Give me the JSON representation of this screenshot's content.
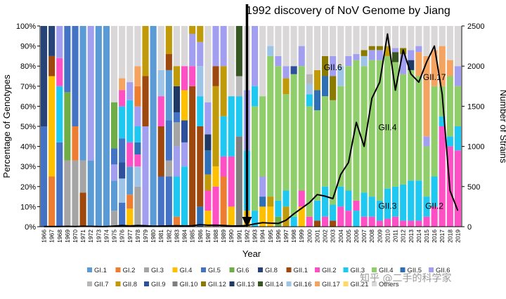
{
  "chart_data": {
    "type": "bar",
    "stacked": true,
    "title": "1992 discovery of NoV Genome by Jiang",
    "xlabel": "Year",
    "ylabel": "Percentage of Genotypes",
    "y2label": "Number of Strains",
    "ylim": [
      0,
      100
    ],
    "y2lim": [
      0,
      2500
    ],
    "yticks": [
      "0%",
      "10%",
      "20%",
      "30%",
      "40%",
      "50%",
      "60%",
      "70%",
      "80%",
      "90%",
      "100%"
    ],
    "y2ticks": [
      "0",
      "500",
      "1000",
      "1500",
      "2000",
      "2500"
    ],
    "categories": [
      "1966",
      "1967",
      "1968",
      "1969",
      "1970",
      "1971",
      "1972",
      "1973",
      "1974",
      "1975",
      "1976",
      "1977",
      "1978",
      "1979",
      "1980",
      "1981",
      "1982",
      "1983",
      "1984",
      "1985",
      "1986",
      "1987",
      "1988",
      "1989",
      "1990",
      "1991",
      "1992",
      "1993",
      "1994",
      "1995",
      "1996",
      "1997",
      "1998",
      "1999",
      "2000",
      "2001",
      "2002",
      "2003",
      "2004",
      "2005",
      "2006",
      "2007",
      "2008",
      "2009",
      "2010",
      "2011",
      "2012",
      "2013",
      "2014",
      "2015",
      "2016",
      "2017",
      "2018",
      "2019"
    ],
    "genotypes": [
      {
        "name": "GI.1",
        "color": "#5b9bd5"
      },
      {
        "name": "GI.2",
        "color": "#ed7d31"
      },
      {
        "name": "GI.3",
        "color": "#a5a5a5"
      },
      {
        "name": "GI.4",
        "color": "#ffc000"
      },
      {
        "name": "GI.5",
        "color": "#4472c4"
      },
      {
        "name": "GI.6",
        "color": "#70ad47"
      },
      {
        "name": "GI.8",
        "color": "#264478"
      },
      {
        "name": "GII.1",
        "color": "#9e480e"
      },
      {
        "name": "GII.2",
        "color": "#ff4fc4"
      },
      {
        "name": "GII.3",
        "color": "#1ec8f0"
      },
      {
        "name": "GII.4",
        "color": "#8fce6a"
      },
      {
        "name": "GII.5",
        "color": "#2f6fb5"
      },
      {
        "name": "GII.6",
        "color": "#a39ff0"
      },
      {
        "name": "GII.7",
        "color": "#b7b7b7"
      },
      {
        "name": "GII.8",
        "color": "#c09a08"
      },
      {
        "name": "GII.9",
        "color": "#2e4f9c"
      },
      {
        "name": "GII.10",
        "color": "#7f7f7f"
      },
      {
        "name": "GII.12",
        "color": "#8a7b00"
      },
      {
        "name": "GII.13",
        "color": "#1f3864"
      },
      {
        "name": "GII.14",
        "color": "#375623"
      },
      {
        "name": "GII.16",
        "color": "#9dc3e6"
      },
      {
        "name": "GII.17",
        "color": "#f4a460"
      },
      {
        "name": "GII.21",
        "color": "#ffd966"
      },
      {
        "name": "Others",
        "color": "#d9d7d7"
      }
    ],
    "segments": [
      [
        [
          "GI.5",
          50
        ],
        [
          "GI.8",
          50
        ]
      ],
      [
        [
          "GI.2",
          25
        ],
        [
          "GI.4",
          50
        ],
        [
          "GII.1",
          10
        ],
        [
          "GI.8",
          15
        ]
      ],
      [
        [
          "GI.5",
          42
        ],
        [
          "GII.3",
          28
        ],
        [
          "GII.2",
          14
        ],
        [
          "GII.6",
          16
        ]
      ],
      [
        [
          "GI.3",
          33
        ],
        [
          "GI.6",
          34
        ],
        [
          "GI.5",
          33
        ]
      ],
      [
        [
          "GI.3",
          33
        ],
        [
          "GI.2",
          17
        ],
        [
          "GI.5",
          50
        ]
      ],
      [
        [
          "GII.1",
          17
        ],
        [
          "GI.3",
          16
        ],
        [
          "GI.1",
          67
        ]
      ],
      [
        [
          "GI.1",
          33
        ],
        [
          "GII.6",
          67
        ]
      ],
      [
        [
          "GI.1",
          100
        ]
      ],
      [
        [
          "GI.1",
          100
        ]
      ],
      [
        [
          "GI.3",
          8
        ],
        [
          "GI.1",
          15
        ],
        [
          "GII.6",
          8
        ],
        [
          "GI.5",
          8
        ],
        [
          "GI.6",
          23
        ],
        [
          "Others",
          38
        ]
      ],
      [
        [
          "GI.5",
          12
        ],
        [
          "GII.16",
          12
        ],
        [
          "GII.9",
          8
        ],
        [
          "GI.5",
          12
        ],
        [
          "GII.3",
          16
        ],
        [
          "GII.2",
          8
        ],
        [
          "GII.17",
          6
        ],
        [
          "Others",
          26
        ]
      ],
      [
        [
          "GI.4",
          9
        ],
        [
          "GI.2",
          7
        ],
        [
          "GI.1",
          14
        ],
        [
          "GII.2",
          12
        ],
        [
          "GII.3",
          21
        ],
        [
          "GII.6",
          9
        ],
        [
          "Others",
          28
        ]
      ],
      [
        [
          "GI.3",
          20
        ],
        [
          "GII.16",
          10
        ],
        [
          "GII.2",
          6
        ],
        [
          "GII.5",
          6
        ],
        [
          "GII.3",
          8
        ],
        [
          "GII.6",
          10
        ],
        [
          "GI.2",
          10
        ],
        [
          "GII.17",
          10
        ],
        [
          "Others",
          20
        ]
      ],
      [
        [
          "GII.6",
          50
        ],
        [
          "GII.1",
          25
        ],
        [
          "GII.8",
          25
        ]
      ],
      [
        [
          "GI.1",
          100
        ]
      ],
      [
        [
          "GI.5",
          25
        ],
        [
          "GII.1",
          25
        ],
        [
          "GII.2",
          15
        ],
        [
          "GII.16",
          13
        ],
        [
          "Others",
          22
        ]
      ],
      [
        [
          "GI.5",
          25
        ],
        [
          "GI.3",
          8
        ],
        [
          "GI.5",
          20
        ],
        [
          "GI.1",
          25
        ],
        [
          "GII.1",
          8
        ],
        [
          "GII.8",
          14
        ]
      ],
      [
        [
          "GI.2",
          5
        ],
        [
          "GII.3",
          20
        ],
        [
          "GII.6",
          15
        ],
        [
          "GI.3",
          12
        ],
        [
          "GI.5",
          5
        ],
        [
          "GII.13",
          13
        ],
        [
          "GII.8",
          10
        ],
        [
          "Others",
          20
        ]
      ],
      [
        [
          "GII.3",
          30
        ],
        [
          "GII.6",
          12
        ],
        [
          "GII.9",
          11
        ],
        [
          "GI.4",
          15
        ],
        [
          "GII.2",
          12
        ],
        [
          "Others",
          20
        ]
      ],
      [
        [
          "GII.1",
          70
        ],
        [
          "GII.2",
          10
        ],
        [
          "GII.6",
          16
        ],
        [
          "GII.8",
          4
        ]
      ],
      [
        [
          "GII.5",
          10
        ],
        [
          "GII.1",
          40
        ],
        [
          "GII.3",
          15
        ],
        [
          "GII.16",
          15
        ],
        [
          "GII.6",
          12
        ],
        [
          "GII.8",
          8
        ]
      ],
      [
        [
          "GI.4",
          8
        ],
        [
          "GII.2",
          10
        ],
        [
          "GII.8",
          8
        ],
        [
          "GII.5",
          12
        ],
        [
          "GII.13",
          8
        ],
        [
          "GII.6",
          16
        ],
        [
          "Others",
          38
        ]
      ],
      [
        [
          "GII.2",
          20
        ],
        [
          "GI.4",
          10
        ],
        [
          "GII.8",
          40
        ],
        [
          "GII.1",
          10
        ],
        [
          "GII.6",
          20
        ]
      ],
      [
        [
          "GI.2",
          25
        ],
        [
          "GII.2",
          10
        ],
        [
          "GII.3",
          20
        ],
        [
          "GII.8",
          25
        ],
        [
          "GII.6",
          20
        ]
      ],
      [
        [
          "GI.4",
          10
        ],
        [
          "GII.2",
          25
        ],
        [
          "GII.3",
          30
        ],
        [
          "Others",
          35
        ]
      ],
      [
        [
          "GII.10",
          45
        ],
        [
          "GII.3",
          20
        ],
        [
          "GII.7",
          10
        ],
        [
          "GII.14",
          25
        ]
      ],
      [
        [
          "GI.4",
          8
        ],
        [
          "GII.3",
          30
        ],
        [
          "GII.6",
          30
        ],
        [
          "Others",
          32
        ]
      ],
      [
        [
          "GII.3",
          8
        ],
        [
          "GII.4",
          52
        ],
        [
          "GII.3",
          10
        ],
        [
          "GII.6",
          30
        ]
      ],
      [
        [
          "GI.4",
          10
        ],
        [
          "GII.5",
          5
        ],
        [
          "GII.6",
          10
        ],
        [
          "GII.4",
          40
        ],
        [
          "Others",
          35
        ]
      ],
      [
        [
          "GI.4",
          10
        ],
        [
          "GII.8",
          5
        ],
        [
          "GII.4",
          70
        ],
        [
          "GII.16",
          5
        ],
        [
          "Others",
          10
        ]
      ],
      [
        [
          "GI.6",
          5
        ],
        [
          "GII.3",
          8
        ],
        [
          "GII.4",
          67
        ],
        [
          "GII.6",
          5
        ],
        [
          "Others",
          15
        ]
      ],
      [
        [
          "GII.8",
          10
        ],
        [
          "GII.3",
          8
        ],
        [
          "GII.4",
          48
        ],
        [
          "GII.8",
          8
        ],
        [
          "GII.6",
          6
        ],
        [
          "Others",
          20
        ]
      ],
      [
        [
          "GII.3",
          5
        ],
        [
          "GII.4",
          71
        ],
        [
          "GII.9",
          4
        ],
        [
          "Others",
          20
        ]
      ],
      [
        [
          "GI.4",
          10
        ],
        [
          "GII.2",
          8
        ],
        [
          "GII.4",
          62
        ],
        [
          "GII.6",
          10
        ],
        [
          "Others",
          10
        ]
      ],
      [
        [
          "GII.2",
          5
        ],
        [
          "GII.4",
          55
        ],
        [
          "GII.3",
          6
        ],
        [
          "GII.16",
          5
        ],
        [
          "GII.7",
          5
        ],
        [
          "Others",
          24
        ]
      ],
      [
        [
          "GII.1",
          3
        ],
        [
          "GII.3",
          10
        ],
        [
          "GII.4",
          45
        ],
        [
          "GII.5",
          10
        ],
        [
          "GII.8",
          10
        ],
        [
          "Others",
          22
        ]
      ],
      [
        [
          "GII.2",
          5
        ],
        [
          "GII.3",
          15
        ],
        [
          "GII.4",
          45
        ],
        [
          "GII.5",
          10
        ],
        [
          "GII.12",
          10
        ],
        [
          "Others",
          15
        ]
      ],
      [
        [
          "GII.1",
          3
        ],
        [
          "GII.3",
          8
        ],
        [
          "GII.4",
          52
        ],
        [
          "GII.12",
          12
        ],
        [
          "GII.6",
          10
        ],
        [
          "Others",
          15
        ]
      ],
      [
        [
          "GII.2",
          10
        ],
        [
          "GII.3",
          10
        ],
        [
          "GII.4",
          50
        ],
        [
          "GII.16",
          10
        ],
        [
          "Others",
          20
        ]
      ],
      [
        [
          "GII.2",
          8
        ],
        [
          "GII.3",
          10
        ],
        [
          "GII.4",
          62
        ],
        [
          "GII.6",
          5
        ],
        [
          "Others",
          15
        ]
      ],
      [
        [
          "GII.3",
          8
        ],
        [
          "GII.2",
          5
        ],
        [
          "GII.4",
          70
        ],
        [
          "GII.6",
          3
        ],
        [
          "Others",
          14
        ]
      ],
      [
        [
          "GII.2",
          5
        ],
        [
          "GII.3",
          12
        ],
        [
          "GII.4",
          63
        ],
        [
          "GII.16",
          5
        ],
        [
          "GII.12",
          3
        ],
        [
          "Others",
          12
        ]
      ],
      [
        [
          "GII.2",
          5
        ],
        [
          "GII.3",
          10
        ],
        [
          "GII.4",
          68
        ],
        [
          "GII.6",
          5
        ],
        [
          "GII.12",
          2
        ],
        [
          "Others",
          10
        ]
      ],
      [
        [
          "GII.2",
          3
        ],
        [
          "GII.3",
          10
        ],
        [
          "GII.4",
          70
        ],
        [
          "GII.6",
          5
        ],
        [
          "GII.12",
          2
        ],
        [
          "Others",
          10
        ]
      ],
      [
        [
          "GII.2",
          4
        ],
        [
          "GII.3",
          15
        ],
        [
          "GII.4",
          66
        ],
        [
          "GII.8",
          5
        ],
        [
          "Others",
          10
        ]
      ],
      [
        [
          "GII.2",
          5
        ],
        [
          "GII.3",
          15
        ],
        [
          "GII.4",
          62
        ],
        [
          "GII.14",
          5
        ],
        [
          "GII.6",
          2
        ],
        [
          "Others",
          11
        ]
      ],
      [
        [
          "GII.2",
          3
        ],
        [
          "GII.3",
          18
        ],
        [
          "GII.4",
          55
        ],
        [
          "GII.6",
          10
        ],
        [
          "GII.12",
          3
        ],
        [
          "Others",
          11
        ]
      ],
      [
        [
          "GII.2",
          3
        ],
        [
          "GII.3",
          20
        ],
        [
          "GII.4",
          55
        ],
        [
          "GII.13",
          5
        ],
        [
          "GII.6",
          5
        ],
        [
          "Others",
          12
        ]
      ],
      [
        [
          "GII.2",
          3
        ],
        [
          "GII.3",
          20
        ],
        [
          "GII.4",
          52
        ],
        [
          "GII.17",
          12
        ],
        [
          "GII.6",
          3
        ],
        [
          "Others",
          10
        ]
      ],
      [
        [
          "GII.2",
          5
        ],
        [
          "GII.3",
          10
        ],
        [
          "GII.4",
          25
        ],
        [
          "GII.6",
          5
        ],
        [
          "GII.17",
          40
        ],
        [
          "Others",
          15
        ]
      ],
      [
        [
          "GII.2",
          10
        ],
        [
          "GII.3",
          15
        ],
        [
          "GII.4",
          45
        ],
        [
          "GII.17",
          18
        ],
        [
          "Others",
          12
        ]
      ],
      [
        [
          "GII.2",
          50
        ],
        [
          "GII.3",
          5
        ],
        [
          "GII.4",
          15
        ],
        [
          "GII.17",
          20
        ],
        [
          "Others",
          10
        ]
      ],
      [
        [
          "GII.2",
          40
        ],
        [
          "GII.3",
          5
        ],
        [
          "GII.4",
          30
        ],
        [
          "GII.17",
          8
        ],
        [
          "Others",
          17
        ]
      ],
      [
        [
          "GII.2",
          38
        ],
        [
          "GII.3",
          12
        ],
        [
          "GII.4",
          20
        ],
        [
          "GII.6",
          10
        ],
        [
          "Others",
          20
        ]
      ]
    ],
    "strains": [
      2,
      3,
      3,
      4,
      3,
      5,
      4,
      3,
      3,
      8,
      15,
      10,
      15,
      12,
      6,
      8,
      10,
      12,
      10,
      12,
      25,
      18,
      20,
      15,
      10,
      10,
      15,
      35,
      50,
      45,
      40,
      80,
      160,
      230,
      300,
      400,
      380,
      350,
      650,
      800,
      1300,
      1000,
      1600,
      1800,
      2400,
      1700,
      2200,
      1900,
      1800,
      2050,
      2250,
      1650,
      450,
      200
    ],
    "annotations": [
      {
        "text": "GII.6",
        "year": "2003",
        "y": 78
      },
      {
        "text": "GII.17",
        "year": "2016",
        "y": 73
      },
      {
        "text": "GII.4",
        "year": "2010",
        "y": 48
      },
      {
        "text": "GII.3",
        "year": "2010",
        "y": 9
      },
      {
        "text": "GII.2",
        "year": "2016",
        "y": 9
      }
    ],
    "legend_position": "bottom",
    "watermark": "知乎 @二手的科学家"
  }
}
